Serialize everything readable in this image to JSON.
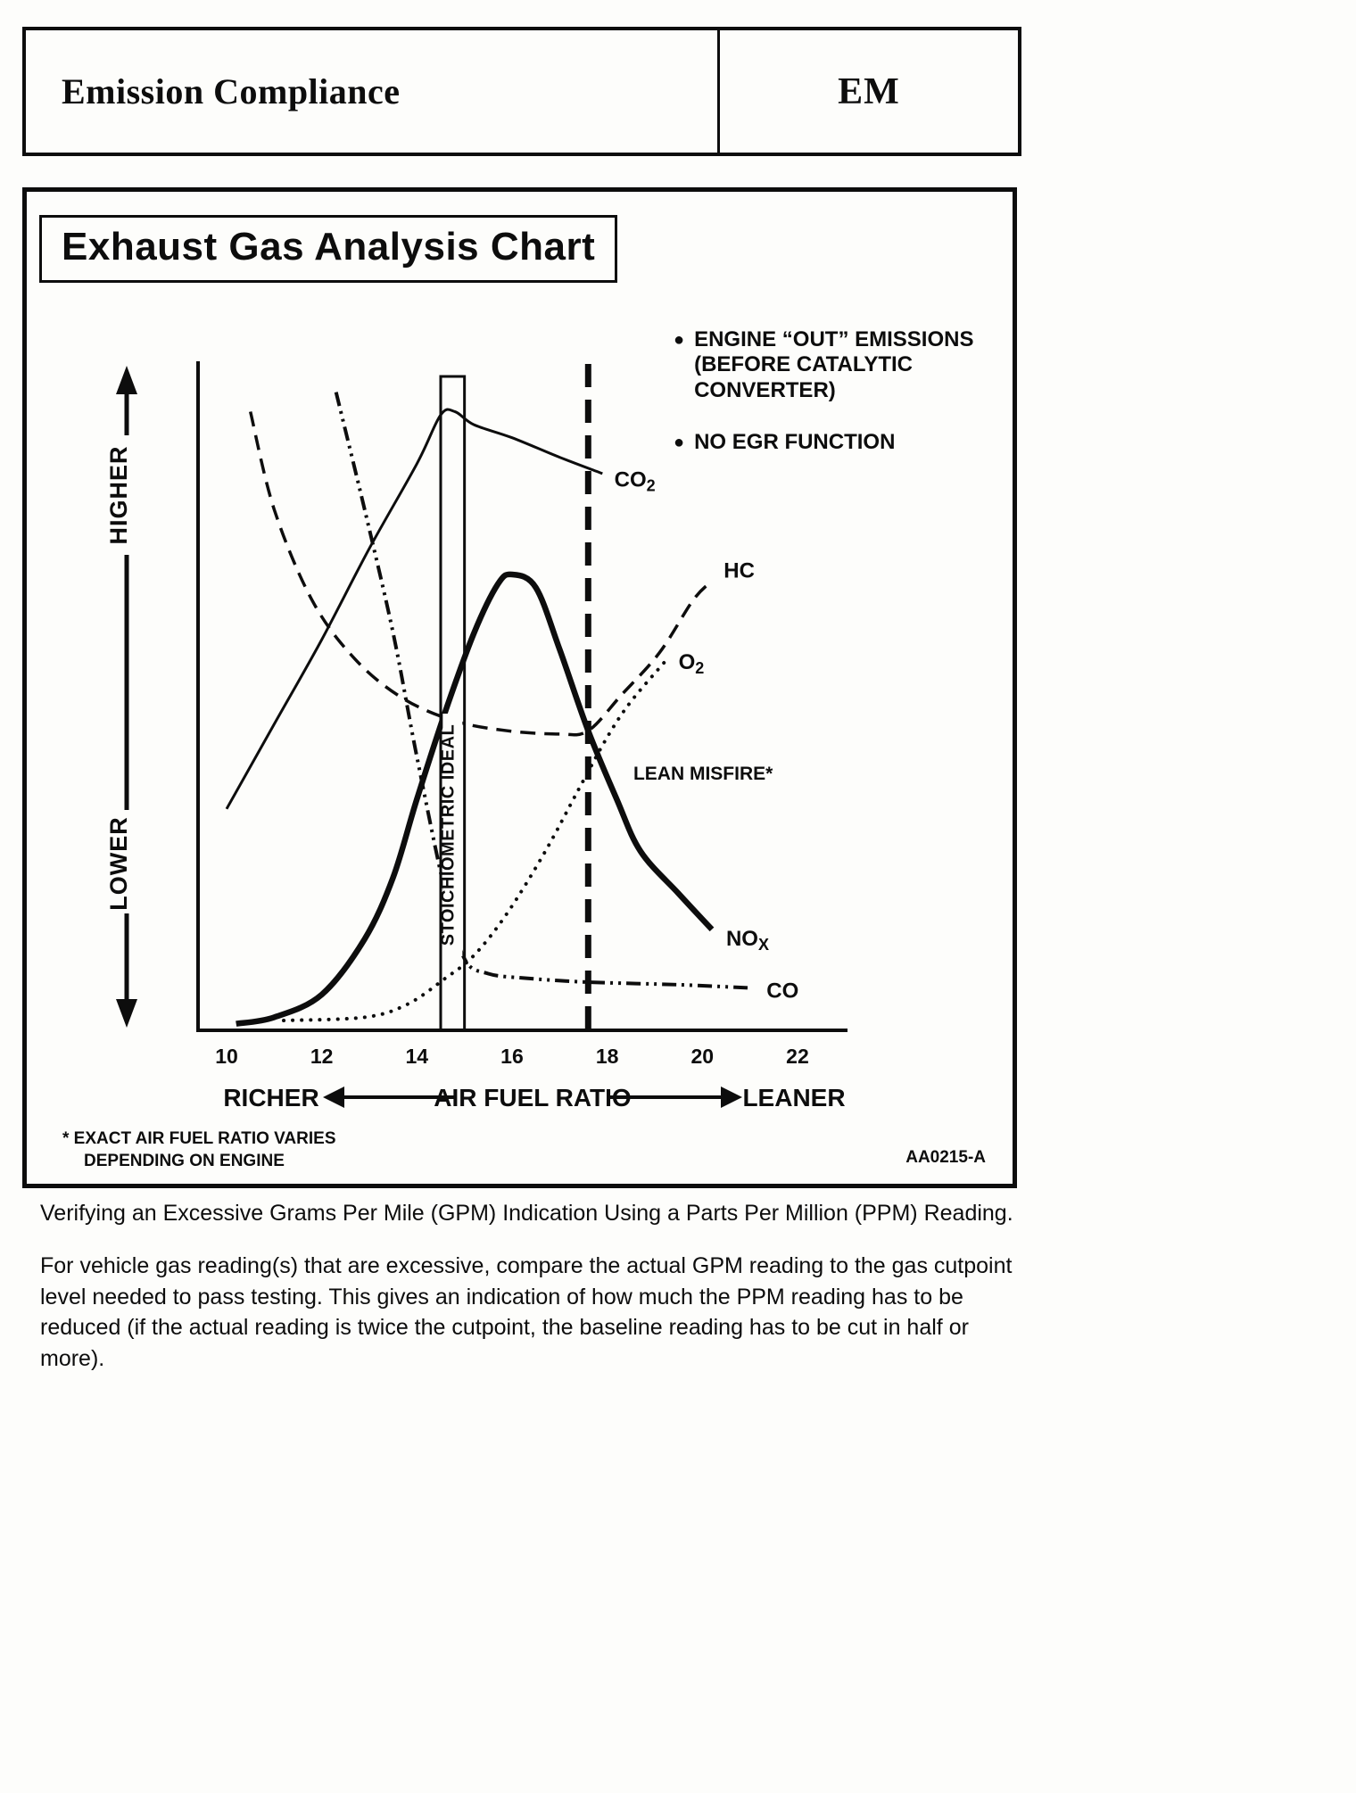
{
  "page": {
    "header": {
      "title": "Emission Compliance",
      "section_code": "EM"
    },
    "chart_title": "Exhaust Gas Analysis Chart",
    "notes": [
      "ENGINE “OUT” EMISSIONS (BEFORE CATALYTIC CONVERTER)",
      "NO EGR FUNCTION"
    ],
    "footnote_line1": "* EXACT AIR FUEL RATIO VARIES",
    "footnote_line2": "DEPENDING ON ENGINE",
    "figure_code": "AA0215-A",
    "caption": "Verifying an Excessive Grams Per Mile (GPM) Indication Using a Parts Per Million (PPM) Reading.",
    "body_paragraph": "For vehicle gas reading(s) that are excessive, compare the actual GPM reading to the gas cutpoint level needed to pass testing. This gives an indication of how much the PPM reading has to be reduced (if the actual reading is twice the cutpoint, the baseline reading has to be cut in half or more)."
  },
  "chart_data": {
    "type": "line",
    "title": "Exhaust Gas Analysis Chart",
    "xlabel": "AIR FUEL RATIO",
    "x_left_label": "RICHER",
    "x_right_label": "LEANER",
    "y_top_label": "HIGHER",
    "y_bottom_label": "LOWER",
    "x_ticks": [
      10,
      12,
      14,
      16,
      18,
      20,
      22
    ],
    "xlim": [
      9.4,
      23
    ],
    "ylim": [
      0,
      100
    ],
    "y_axis_note": "relative concentration, no numeric scale shown",
    "grid": false,
    "series": [
      {
        "name": "CO2",
        "label_main": "CO",
        "label_sub": "2",
        "style": "solid-thin",
        "label_at": [
          18.15,
          83.5
        ],
        "points": [
          [
            10,
            34
          ],
          [
            11,
            47
          ],
          [
            12,
            60
          ],
          [
            13,
            74
          ],
          [
            14,
            87
          ],
          [
            14.5,
            94.5
          ],
          [
            14.8,
            95
          ],
          [
            15.2,
            93
          ],
          [
            16,
            91
          ],
          [
            17,
            88
          ],
          [
            17.9,
            85.5
          ]
        ]
      },
      {
        "name": "HC",
        "label_main": "HC",
        "label_sub": "",
        "style": "dashed",
        "label_at": [
          20.45,
          69.5
        ],
        "points": [
          [
            10.5,
            95
          ],
          [
            11,
            80
          ],
          [
            11.8,
            66
          ],
          [
            12.7,
            57
          ],
          [
            13.7,
            51
          ],
          [
            14.8,
            47.5
          ],
          [
            15.9,
            46
          ],
          [
            17,
            45.5
          ],
          [
            17.6,
            46
          ],
          [
            18.3,
            51.5
          ],
          [
            19.1,
            58
          ],
          [
            19.8,
            66
          ],
          [
            20.2,
            69
          ]
        ]
      },
      {
        "name": "CO",
        "label_main": "CO",
        "label_sub": "",
        "style": "dash-dot-dot",
        "label_at": [
          21.35,
          5
        ],
        "points": [
          [
            12.3,
            98
          ],
          [
            12.9,
            80
          ],
          [
            13.5,
            61
          ],
          [
            14,
            42
          ],
          [
            14.6,
            21
          ],
          [
            15,
            11
          ],
          [
            15.5,
            8.7
          ],
          [
            16.3,
            8
          ],
          [
            17.6,
            7.4
          ],
          [
            19.5,
            7
          ],
          [
            21,
            6.5
          ]
        ]
      },
      {
        "name": "NOx",
        "label_main": "NO",
        "label_sub": "X",
        "style": "solid-thick",
        "label_at": [
          20.5,
          13
        ],
        "points": [
          [
            10.2,
            1
          ],
          [
            11,
            2
          ],
          [
            12,
            5.5
          ],
          [
            12.9,
            14
          ],
          [
            13.5,
            23.5
          ],
          [
            14,
            35.5
          ],
          [
            14.6,
            49
          ],
          [
            15.2,
            61
          ],
          [
            15.7,
            68.5
          ],
          [
            16,
            70
          ],
          [
            16.5,
            68
          ],
          [
            17,
            58.5
          ],
          [
            17.6,
            46
          ],
          [
            18.2,
            35.5
          ],
          [
            18.7,
            27.5
          ],
          [
            19.5,
            21
          ],
          [
            20.2,
            15.5
          ]
        ]
      },
      {
        "name": "O2",
        "label_main": "O",
        "label_sub": "2",
        "style": "dotted",
        "label_at": [
          19.5,
          55.5
        ],
        "points": [
          [
            11.2,
            1.5
          ],
          [
            12.9,
            2
          ],
          [
            13.8,
            4
          ],
          [
            14.6,
            8
          ],
          [
            15.2,
            11.5
          ],
          [
            15.9,
            18
          ],
          [
            16.7,
            27.5
          ],
          [
            17.4,
            37
          ],
          [
            18,
            45
          ],
          [
            18.5,
            50.5
          ],
          [
            19.2,
            56.5
          ]
        ]
      }
    ],
    "annotations": [
      {
        "type": "band",
        "label": "STOICHIOMETRIC IDEAL",
        "x_from": 14.5,
        "x_to": 15.0
      },
      {
        "type": "vline",
        "label": "LEAN MISFIRE*",
        "x": 17.6,
        "style": "dashed-bold",
        "label_at": [
          18.55,
          38.5
        ]
      }
    ]
  }
}
